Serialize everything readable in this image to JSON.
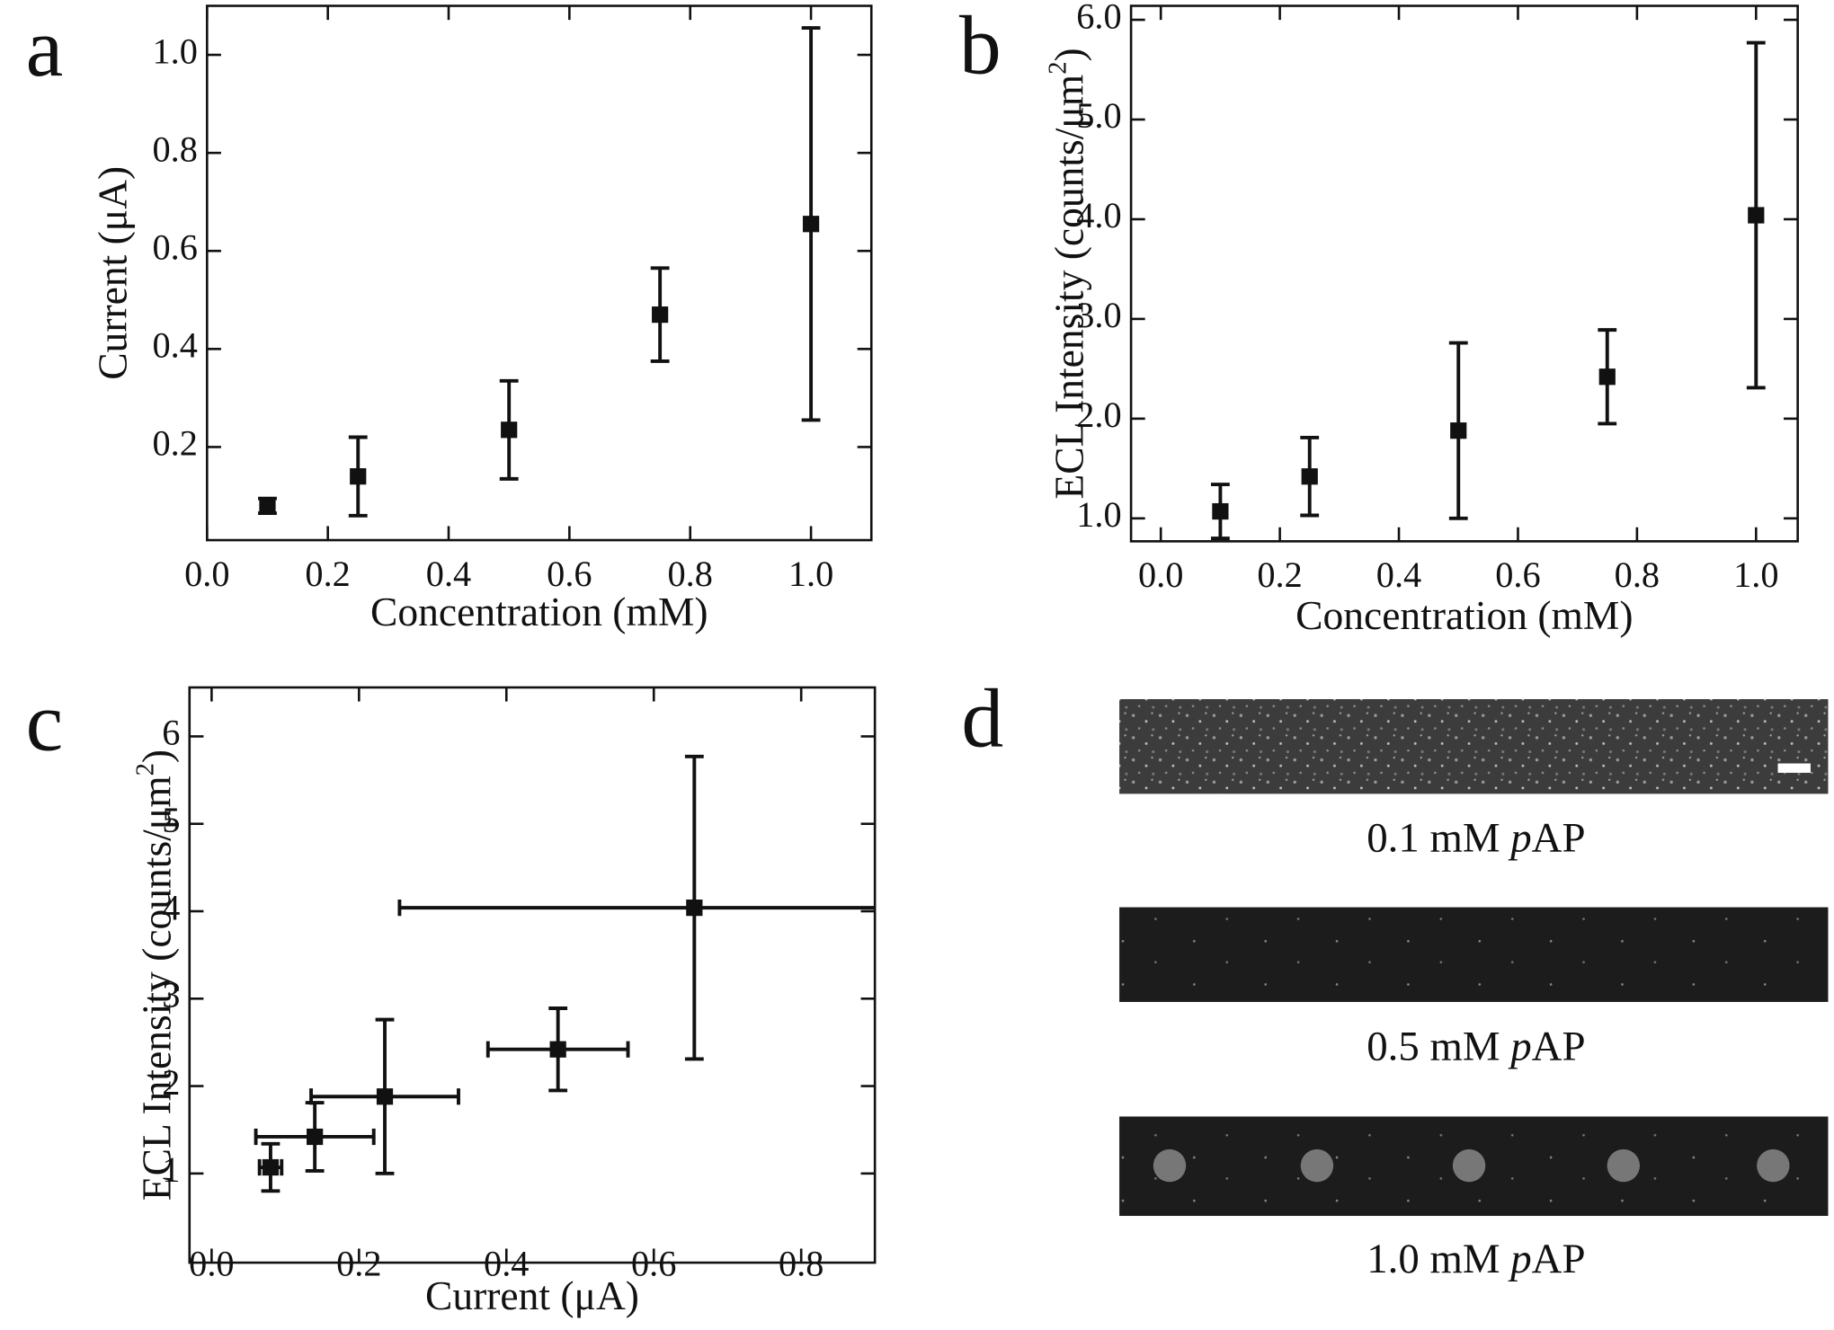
{
  "chart_data": [
    {
      "type": "scatter",
      "label": "a",
      "x_label": "Concentration (mM)",
      "y_label": "Current (μA)",
      "x": [
        0.1,
        0.25,
        0.5,
        0.75,
        1.0
      ],
      "values": [
        0.08,
        0.14,
        0.235,
        0.47,
        0.655
      ],
      "errors": [
        0.015,
        0.08,
        0.1,
        0.095,
        0.4
      ],
      "color": "#111111",
      "xlim": [
        0,
        1.1
      ],
      "ylim": [
        0.01,
        1.1
      ],
      "xticks": [
        {
          "value": 0,
          "label": "0.0"
        },
        0.2,
        0.4,
        0.6,
        0.8,
        {
          "value": 1,
          "label": "1.0"
        }
      ],
      "yticks": [
        0.2,
        0.4,
        0.6,
        0.8,
        {
          "value": 1,
          "label": "1.0"
        }
      ]
    },
    {
      "type": "scatter",
      "label": "b",
      "x_label": "Concentration (mM)",
      "y_label": [
        "ECL Intensity (counts/μm",
        "2",
        ")"
      ],
      "x": [
        0.1,
        0.25,
        0.5,
        0.75,
        1.0
      ],
      "values": [
        1.07,
        1.42,
        1.88,
        2.42,
        4.04
      ],
      "errors": [
        0.27,
        0.39,
        0.88,
        0.47,
        1.73
      ],
      "color": "#111111",
      "xlim": [
        -0.05,
        1.07
      ],
      "ylim": [
        0.77,
        6.14
      ],
      "xticks": [
        {
          "value": 0,
          "label": "0.0"
        },
        0.2,
        0.4,
        0.6,
        0.8,
        {
          "value": 1,
          "label": "1.0"
        }
      ],
      "yticks": [
        {
          "value": 1,
          "label": "1.0"
        },
        {
          "value": 2,
          "label": "2.0"
        },
        {
          "value": 3,
          "label": "3.0"
        },
        {
          "value": 4,
          "label": "4.0"
        },
        {
          "value": 5,
          "label": "5.0"
        },
        {
          "value": 6,
          "label": "6.0"
        }
      ]
    },
    {
      "type": "scatter",
      "label": "c",
      "x_label": "Current (μA)",
      "y_label": [
        "ECL Intensity (counts/μm",
        "2",
        ")"
      ],
      "x": [
        0.08,
        0.14,
        0.235,
        0.47,
        0.655
      ],
      "x_errors": [
        0.015,
        0.08,
        0.1,
        0.095,
        0.4
      ],
      "values": [
        1.07,
        1.42,
        1.88,
        2.42,
        4.04
      ],
      "errors": [
        0.27,
        0.39,
        0.88,
        0.47,
        1.73
      ],
      "color": "#111111",
      "xlim": [
        -0.03,
        0.9
      ],
      "ylim": [
        -0.02,
        6.56
      ],
      "xticks": [
        {
          "value": 0,
          "label": "0.0"
        },
        0.2,
        0.4,
        0.6,
        0.8
      ],
      "yticks": [
        1,
        2,
        3,
        4,
        5,
        6
      ]
    }
  ],
  "images": {
    "label": "d",
    "captions": [
      [
        "0.1 mM ",
        "p",
        "AP"
      ],
      [
        "0.5 mM ",
        "p",
        "AP"
      ],
      [
        "1.0 mM ",
        "p",
        "AP"
      ]
    ]
  }
}
